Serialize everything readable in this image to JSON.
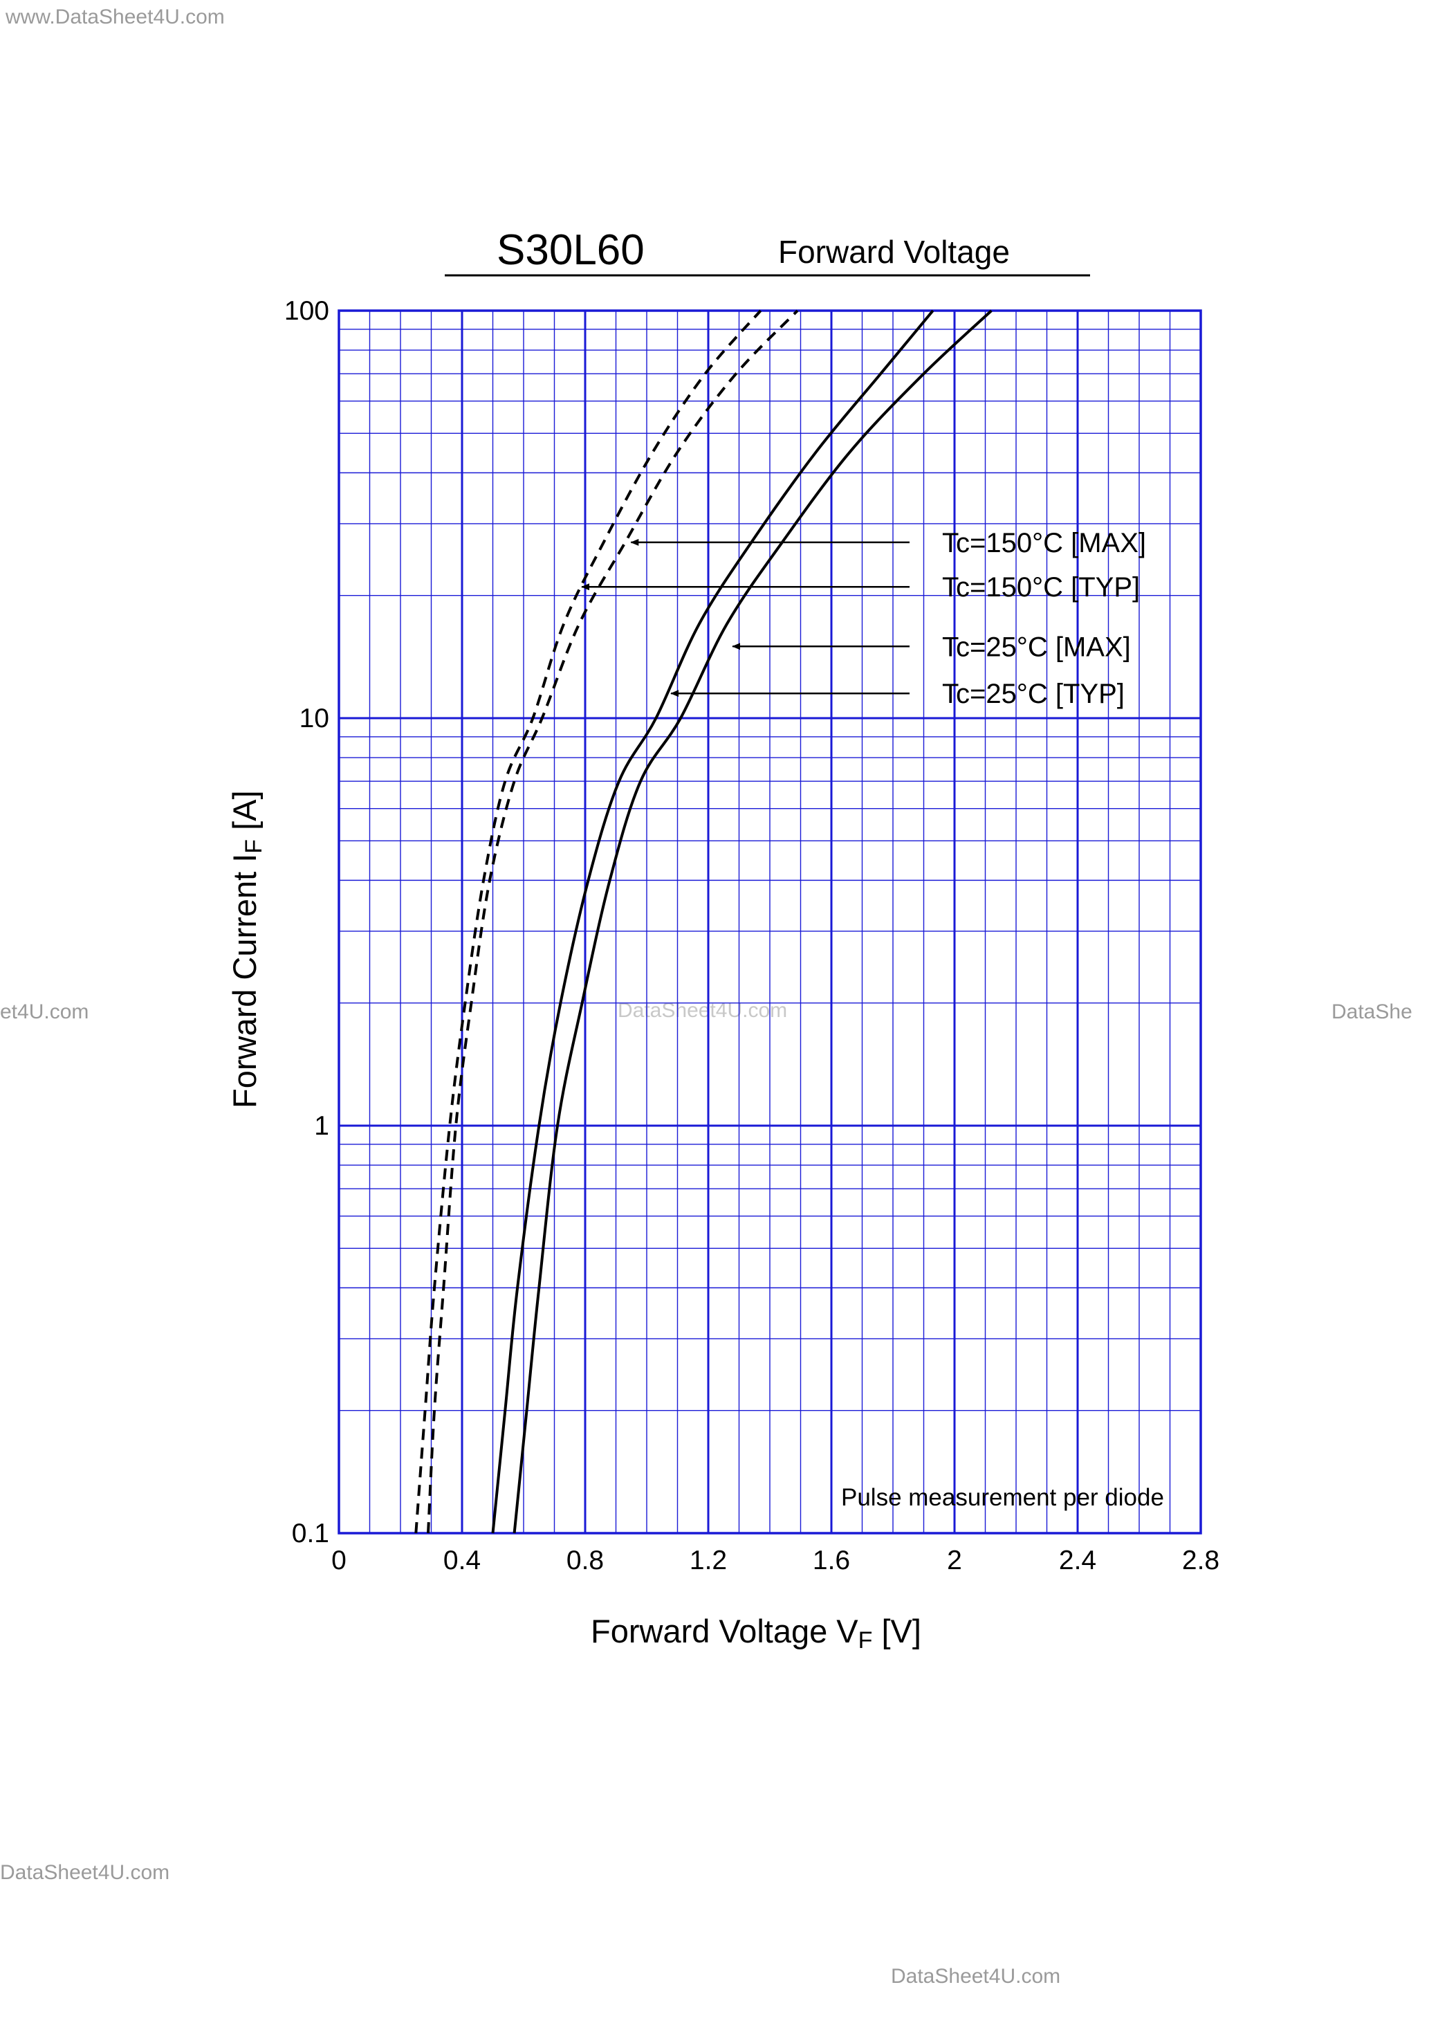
{
  "watermarks": {
    "top_left": "www.DataSheet4U.com",
    "mid_left": "et4U.com",
    "mid_center": "DataSheet4U.com",
    "mid_right": "DataShe",
    "bottom_left": "DataSheet4U.com",
    "bottom_right": "DataSheet4U.com"
  },
  "chart_data": {
    "type": "line",
    "title": "S30L60",
    "subtitle": "Forward  Voltage",
    "xlabel": {
      "text": "Forward Voltage  V",
      "subscript": "F",
      "unit": "  [V]"
    },
    "ylabel": {
      "text": "Forward Current  I",
      "subscript": "F",
      "unit": "  [A]"
    },
    "xlim": [
      0,
      2.8
    ],
    "ylim": [
      0.1,
      100
    ],
    "yscale": "log",
    "grid": true,
    "x_ticks": [
      "0",
      "0.4",
      "0.8",
      "1.2",
      "1.6",
      "2",
      "2.4",
      "2.8"
    ],
    "y_ticks": [
      "0.1",
      "1",
      "10",
      "100"
    ],
    "annotation": "Pulse  measurement  per  diode",
    "colors": {
      "grid": "#1a1ad6",
      "curve": "#000000",
      "axis_title_rule": "#000000"
    },
    "series": [
      {
        "name": "Tc=150°C [MAX]",
        "style": "dashed",
        "x": [
          0.29,
          0.31,
          0.34,
          0.38,
          0.43,
          0.49,
          0.57,
          0.66,
          0.78,
          0.93,
          1.1,
          1.29,
          1.49
        ],
        "y": [
          0.1,
          0.2,
          0.4,
          1,
          2,
          4,
          7,
          10,
          17,
          27,
          45,
          70,
          100
        ]
      },
      {
        "name": "Tc=150°C [TYP]",
        "style": "dashed",
        "x": [
          0.25,
          0.28,
          0.31,
          0.36,
          0.41,
          0.47,
          0.54,
          0.63,
          0.73,
          0.86,
          1.02,
          1.19,
          1.37
        ],
        "y": [
          0.1,
          0.2,
          0.4,
          1,
          2,
          4,
          7,
          10,
          17,
          27,
          45,
          70,
          100
        ]
      },
      {
        "name": "Tc=25°C [MAX]",
        "style": "solid",
        "x": [
          0.57,
          0.61,
          0.65,
          0.71,
          0.79,
          0.88,
          0.98,
          1.11,
          1.26,
          1.44,
          1.66,
          1.9,
          2.12
        ],
        "y": [
          0.1,
          0.2,
          0.4,
          1,
          2,
          4,
          7,
          10,
          17,
          27,
          45,
          70,
          100
        ]
      },
      {
        "name": "Tc=25°C [TYP]",
        "style": "solid",
        "x": [
          0.5,
          0.54,
          0.58,
          0.65,
          0.72,
          0.81,
          0.91,
          1.03,
          1.17,
          1.34,
          1.55,
          1.76,
          1.93
        ],
        "y": [
          0.1,
          0.2,
          0.4,
          1,
          2,
          4,
          7,
          10,
          17,
          27,
          45,
          70,
          100
        ]
      }
    ],
    "legend": [
      {
        "text": "Tc=150°C [MAX]",
        "arrow_x": 0.94,
        "arrow_y": 27
      },
      {
        "text": "Tc=150°C [TYP]",
        "arrow_x": 0.78,
        "arrow_y": 21
      },
      {
        "text": "Tc=25°C [MAX]",
        "arrow_x": 1.27,
        "arrow_y": 15
      },
      {
        "text": "Tc=25°C [TYP]",
        "arrow_x": 1.07,
        "arrow_y": 11.5
      }
    ]
  }
}
